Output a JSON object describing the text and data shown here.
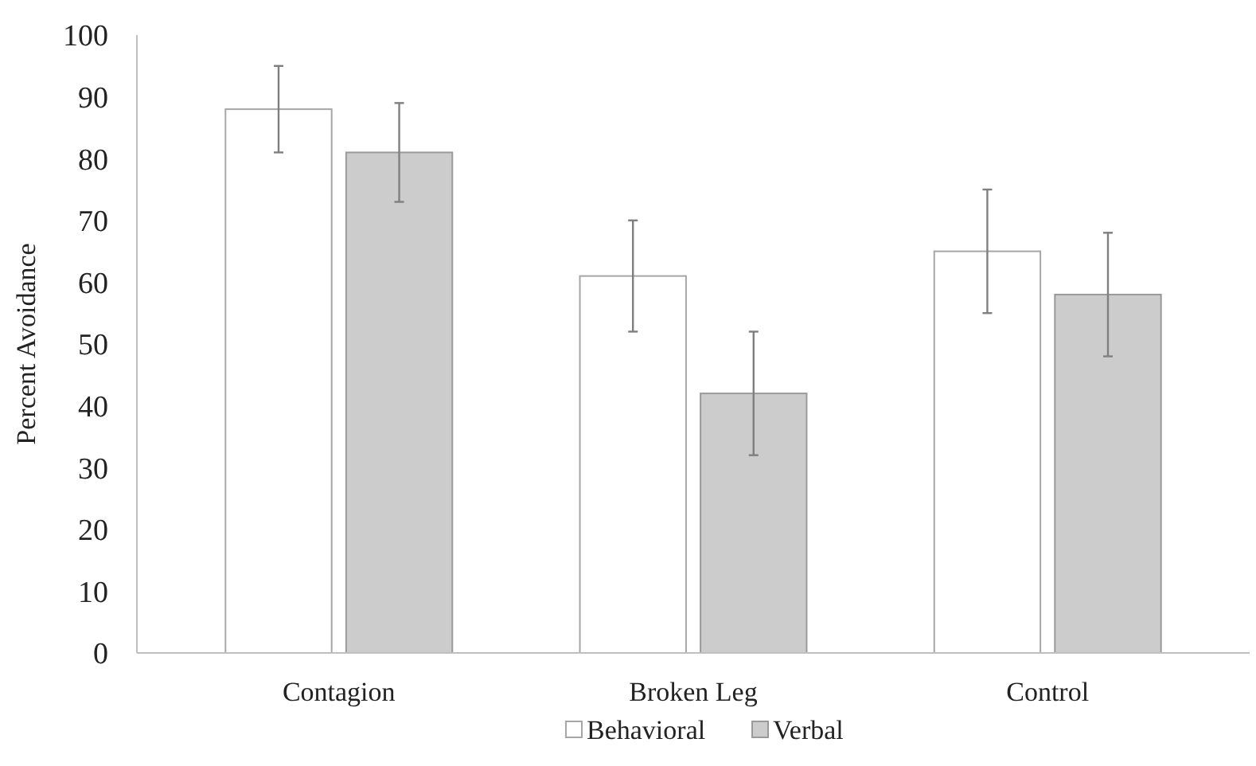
{
  "chart_data": {
    "type": "bar",
    "ylabel": "Percent Avoidance",
    "categories": [
      "Contagion",
      "Broken Leg",
      "Control"
    ],
    "series": [
      {
        "name": "Behavioral",
        "color": "#ffffff",
        "values": [
          88,
          61,
          65
        ],
        "errors": [
          7,
          9,
          10
        ]
      },
      {
        "name": "Verbal",
        "color": "#cccccc",
        "values": [
          81,
          42,
          58
        ],
        "errors": [
          8,
          10,
          10
        ]
      }
    ],
    "ylim": [
      0,
      100
    ],
    "yticks": [
      0,
      10,
      20,
      30,
      40,
      50,
      60,
      70,
      80,
      90,
      100
    ],
    "grid": false,
    "legend": "bottom"
  }
}
